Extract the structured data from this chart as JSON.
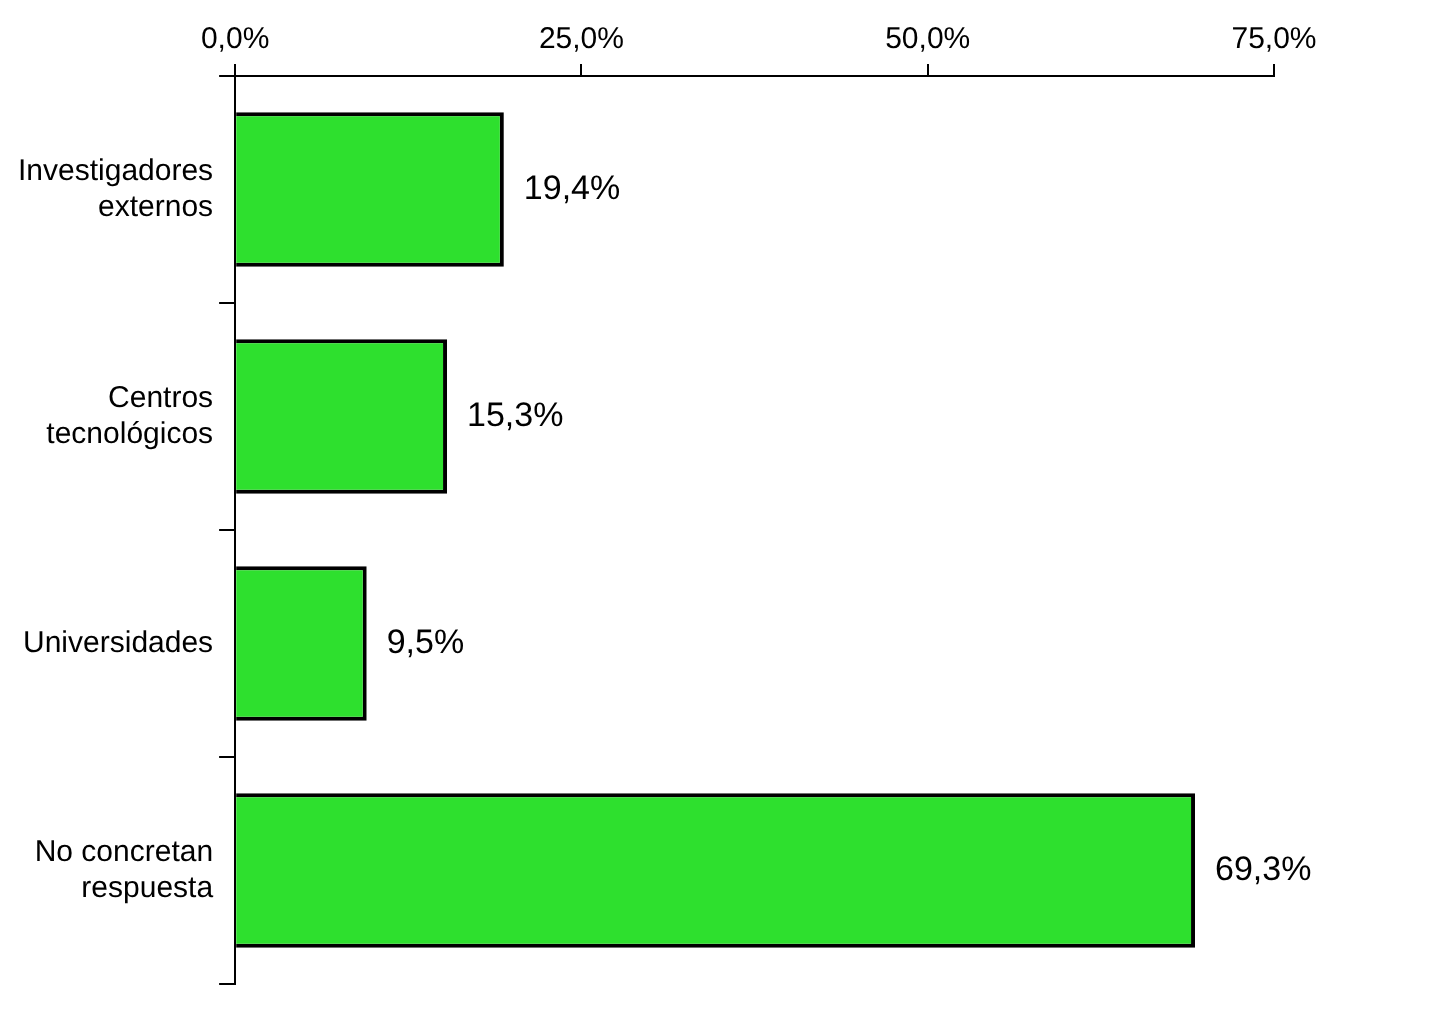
{
  "chart_data": {
    "type": "bar",
    "orientation": "horizontal",
    "categories": [
      "Investigadores externos",
      "Centros tecnológicos",
      "Universidades",
      "No concretan respuesta"
    ],
    "values": [
      19.4,
      15.3,
      9.5,
      69.3
    ],
    "value_labels": [
      "19,4%",
      "15,3%",
      "9,5%",
      "69,3%"
    ],
    "color": "#2ee02e",
    "xlim": [
      0,
      75
    ],
    "xticks": [
      {
        "value": 0,
        "label": "0,0%"
      },
      {
        "value": 25,
        "label": "25,0%"
      },
      {
        "value": 50,
        "label": "50,0%"
      },
      {
        "value": 75,
        "label": "75,0%"
      }
    ]
  }
}
